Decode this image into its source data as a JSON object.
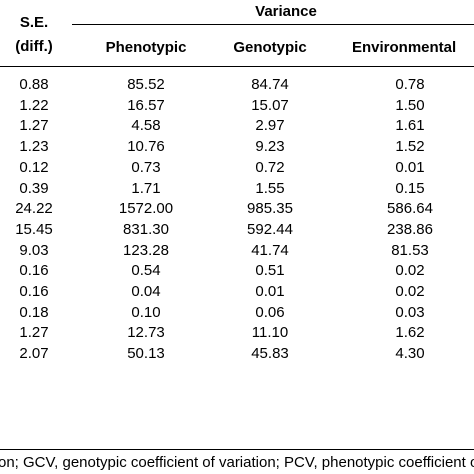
{
  "table": {
    "header": {
      "se_line1": "S.E.",
      "se_line2": "(diff.)",
      "variance_group": "Variance",
      "columns": [
        "Phenotypic",
        "Genotypic",
        "Environmental"
      ]
    },
    "rows": [
      [
        "0.88",
        "85.52",
        "84.74",
        "0.78"
      ],
      [
        "1.22",
        "16.57",
        "15.07",
        "1.50"
      ],
      [
        "1.27",
        "4.58",
        "2.97",
        "1.61"
      ],
      [
        "1.23",
        "10.76",
        "9.23",
        "1.52"
      ],
      [
        "0.12",
        "0.73",
        "0.72",
        "0.01"
      ],
      [
        "0.39",
        "1.71",
        "1.55",
        "0.15"
      ],
      [
        "24.22",
        "1572.00",
        "985.35",
        "586.64"
      ],
      [
        "15.45",
        "831.30",
        "592.44",
        "238.86"
      ],
      [
        "9.03",
        "123.28",
        "41.74",
        "81.53"
      ],
      [
        "0.16",
        "0.54",
        "0.51",
        "0.02"
      ],
      [
        "0.16",
        "0.04",
        "0.01",
        "0.02"
      ],
      [
        "0.18",
        "0.10",
        "0.06",
        "0.03"
      ],
      [
        "1.27",
        "12.73",
        "11.10",
        "1.62"
      ],
      [
        "2.07",
        "50.13",
        "45.83",
        "4.30"
      ]
    ],
    "footnote": "on; GCV, genotypic coefficient of variation; PCV, phenotypic coefficient of variation"
  }
}
